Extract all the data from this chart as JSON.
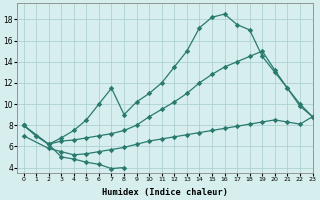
{
  "background_color": "#d6eeee",
  "grid_color": "#a8cccc",
  "line_color": "#2a7a6e",
  "xlabel": "Humidex (Indice chaleur)",
  "xlim": [
    -0.5,
    23
  ],
  "ylim": [
    3.5,
    19.5
  ],
  "xticks": [
    0,
    1,
    2,
    3,
    4,
    5,
    6,
    7,
    8,
    9,
    10,
    11,
    12,
    13,
    14,
    15,
    16,
    17,
    18,
    19,
    20,
    21,
    22,
    23
  ],
  "yticks": [
    4,
    6,
    8,
    10,
    12,
    14,
    16,
    18
  ],
  "line_main_x": [
    0,
    1,
    2,
    3,
    4,
    5,
    6,
    7,
    8,
    9,
    10,
    11,
    12,
    13,
    14,
    15,
    16,
    17,
    18,
    19,
    20,
    21,
    22,
    23
  ],
  "line_main_y": [
    8.0,
    7.0,
    6.2,
    6.8,
    7.5,
    8.5,
    10.0,
    11.5,
    9.0,
    10.2,
    11.0,
    12.0,
    13.5,
    15.0,
    17.2,
    18.2,
    18.5,
    17.5,
    17.0,
    14.5,
    13.0,
    11.5,
    10.0,
    8.8
  ],
  "line_mid_x": [
    0,
    2,
    3,
    4,
    5,
    6,
    7,
    8,
    9,
    10,
    11,
    12,
    13,
    14,
    15,
    16,
    17,
    18,
    19,
    20,
    21,
    22,
    23
  ],
  "line_mid_y": [
    8.0,
    6.2,
    6.5,
    6.6,
    6.8,
    7.0,
    7.2,
    7.5,
    8.0,
    8.8,
    9.5,
    10.2,
    11.0,
    12.0,
    12.8,
    13.5,
    14.0,
    14.5,
    15.0,
    13.2,
    11.5,
    9.8,
    8.8
  ],
  "line_flat_x": [
    0,
    2,
    3,
    4,
    5,
    6,
    7,
    8,
    9,
    10,
    11,
    12,
    13,
    14,
    15,
    16,
    17,
    18,
    19,
    20,
    21,
    22,
    23
  ],
  "line_flat_y": [
    7.0,
    5.8,
    5.5,
    5.2,
    5.3,
    5.5,
    5.7,
    5.9,
    6.2,
    6.5,
    6.7,
    6.9,
    7.1,
    7.3,
    7.5,
    7.7,
    7.9,
    8.1,
    8.3,
    8.5,
    8.3,
    8.1,
    8.8
  ],
  "line_small_x": [
    0,
    1,
    2,
    3,
    4,
    5,
    6,
    7,
    8
  ],
  "line_small_y": [
    8.0,
    7.0,
    6.2,
    5.0,
    4.8,
    4.5,
    4.3,
    3.9,
    4.0
  ]
}
